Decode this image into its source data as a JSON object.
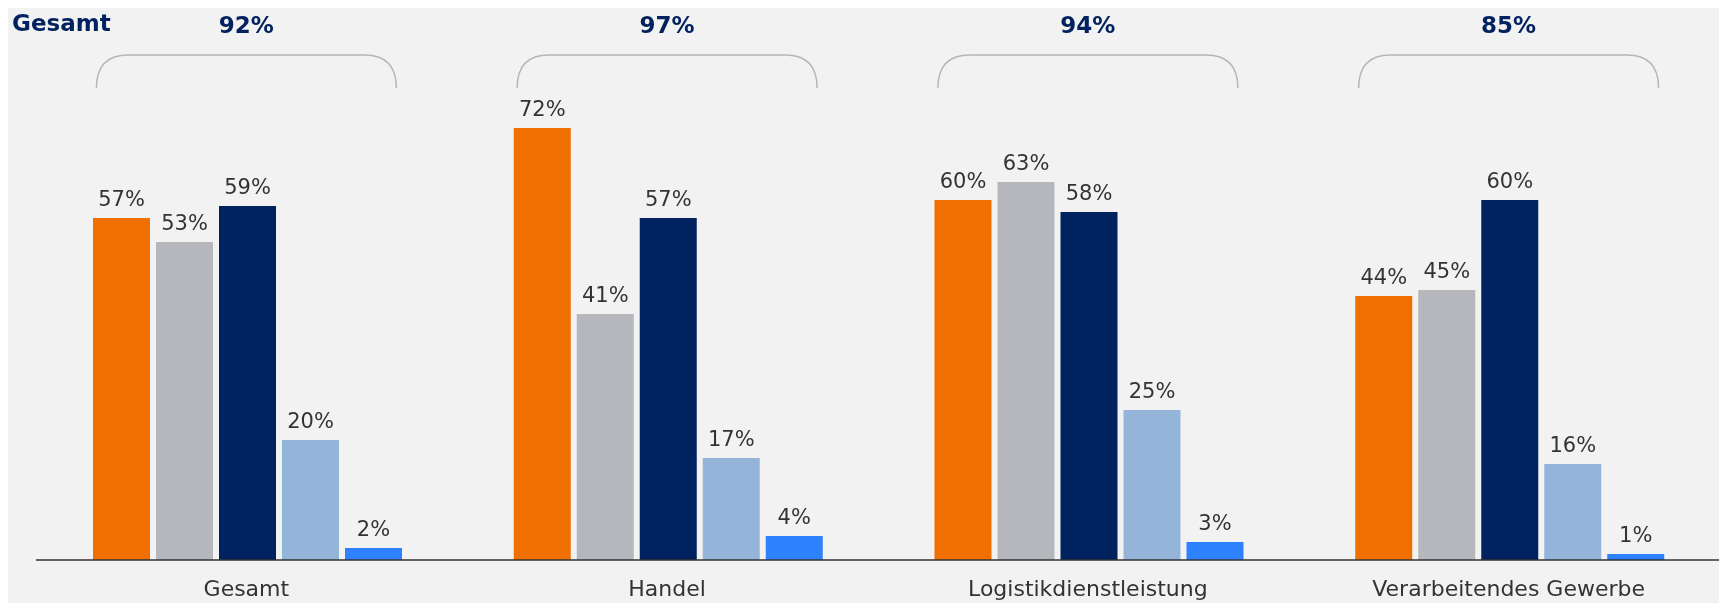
{
  "chart_data": {
    "type": "bar",
    "title": "Gesamt",
    "categories": [
      "Gesamt",
      "Handel",
      "Logistikdienstleistung",
      "Verarbeitendes Gewerbe"
    ],
    "series": [
      {
        "color": "#ef7000",
        "values": [
          57,
          72,
          60,
          44
        ],
        "value_labels": [
          "57%",
          "72%",
          "60%",
          "44%"
        ]
      },
      {
        "color": "#b5b7bc",
        "values": [
          53,
          41,
          63,
          45
        ],
        "value_labels": [
          "53%",
          "41%",
          "63%",
          "45%"
        ]
      },
      {
        "color": "#00235f",
        "values": [
          59,
          57,
          58,
          60
        ],
        "value_labels": [
          "59%",
          "57%",
          "58%",
          "60%"
        ]
      },
      {
        "color": "#95b4da",
        "values": [
          20,
          17,
          25,
          16
        ],
        "value_labels": [
          "20%",
          "17%",
          "25%",
          "16%"
        ]
      },
      {
        "color": "#2f82ff",
        "values": [
          2,
          4,
          3,
          1
        ],
        "value_labels": [
          "2%",
          "4%",
          "3%",
          "1%"
        ]
      }
    ],
    "annotations": [
      "92%",
      "97%",
      "94%",
      "85%"
    ],
    "grid": false,
    "legend": false
  }
}
